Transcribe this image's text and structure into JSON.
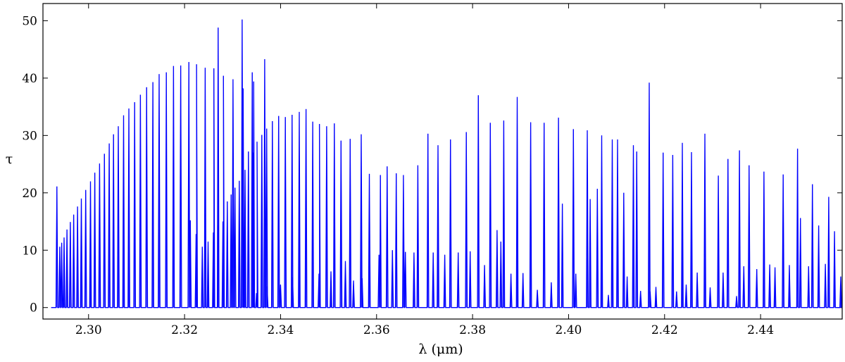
{
  "chart_data": {
    "type": "line",
    "xlabel": "λ (μm)",
    "ylabel": "τ",
    "xlim": [
      2.2905,
      2.457
    ],
    "ylim": [
      -2,
      53
    ],
    "xticks": [
      2.3,
      2.32,
      2.34,
      2.36,
      2.38,
      2.4,
      2.42,
      2.44
    ],
    "xtick_labels": [
      "2.30",
      "2.32",
      "2.34",
      "2.36",
      "2.38",
      "2.40",
      "2.42",
      "2.44"
    ],
    "yticks": [
      0,
      10,
      20,
      30,
      40,
      50
    ],
    "ytick_labels": [
      "0",
      "10",
      "20",
      "30",
      "40",
      "50"
    ],
    "grid": false,
    "line_color": "#0000ff",
    "baseline": 0,
    "series": [
      {
        "peaks": [
          [
            2.2934,
            21.1
          ],
          [
            2.294,
            10.6
          ],
          [
            2.2944,
            11.3
          ],
          [
            2.2949,
            12.2
          ],
          [
            2.2955,
            13.6
          ],
          [
            2.2962,
            14.9
          ],
          [
            2.2969,
            16.2
          ],
          [
            2.2977,
            17.6
          ],
          [
            2.2985,
            19.0
          ],
          [
            2.2994,
            20.5
          ],
          [
            2.3004,
            22.0
          ],
          [
            2.3013,
            23.5
          ],
          [
            2.3023,
            25.1
          ],
          [
            2.3033,
            26.8
          ],
          [
            2.3043,
            28.6
          ],
          [
            2.3052,
            30.2
          ],
          [
            2.3062,
            31.6
          ],
          [
            2.3073,
            33.5
          ],
          [
            2.3084,
            34.7
          ],
          [
            2.3096,
            35.8
          ],
          [
            2.3108,
            37.1
          ],
          [
            2.3121,
            38.4
          ],
          [
            2.3134,
            39.3
          ],
          [
            2.3147,
            40.7
          ],
          [
            2.3162,
            41.0
          ],
          [
            2.3177,
            42.1
          ],
          [
            2.3192,
            42.2
          ],
          [
            2.3209,
            42.8
          ],
          [
            2.3225,
            42.4
          ],
          [
            2.3243,
            41.8
          ],
          [
            2.3261,
            41.7
          ],
          [
            2.3281,
            40.4
          ],
          [
            2.3301,
            39.8
          ],
          [
            2.3322,
            38.2
          ],
          [
            2.3344,
            39.4
          ],
          [
            2.3367,
            43.3
          ],
          [
            2.327,
            48.8
          ],
          [
            2.332,
            50.2
          ],
          [
            2.3341,
            41.0
          ],
          [
            2.3212,
            15.2
          ],
          [
            2.3224,
            12.8
          ],
          [
            2.3237,
            10.6
          ],
          [
            2.3249,
            11.5
          ],
          [
            2.326,
            13.1
          ],
          [
            2.327,
            14.3
          ],
          [
            2.328,
            15.0
          ],
          [
            2.3289,
            18.5
          ],
          [
            2.3297,
            19.7
          ],
          [
            2.3305,
            20.9
          ],
          [
            2.3314,
            22.1
          ],
          [
            2.3326,
            24.0
          ],
          [
            2.3333,
            27.2
          ],
          [
            2.3342,
            27.0
          ],
          [
            2.3351,
            28.9
          ],
          [
            2.3361,
            30.1
          ],
          [
            2.3371,
            31.2
          ],
          [
            2.3383,
            32.5
          ],
          [
            2.3396,
            33.4
          ],
          [
            2.341,
            33.2
          ],
          [
            2.3424,
            33.6
          ],
          [
            2.3439,
            34.1
          ],
          [
            2.3453,
            34.6
          ],
          [
            2.3467,
            32.4
          ],
          [
            2.3481,
            32.0
          ],
          [
            2.3496,
            31.6
          ],
          [
            2.3512,
            32.1
          ],
          [
            2.3526,
            29.1
          ],
          [
            2.3545,
            29.4
          ],
          [
            2.3568,
            30.2
          ],
          [
            2.3585,
            23.3
          ],
          [
            2.3608,
            23.1
          ],
          [
            2.3622,
            24.6
          ],
          [
            2.3641,
            23.4
          ],
          [
            2.3656,
            23.1
          ],
          [
            2.3686,
            24.8
          ],
          [
            2.3707,
            30.3
          ],
          [
            2.3728,
            28.3
          ],
          [
            2.3754,
            29.3
          ],
          [
            2.3787,
            30.6
          ],
          [
            2.3812,
            37.0
          ],
          [
            2.3837,
            32.2
          ],
          [
            2.3865,
            32.6
          ],
          [
            2.3893,
            36.7
          ],
          [
            2.3921,
            32.3
          ],
          [
            2.3949,
            32.2
          ],
          [
            2.3979,
            33.1
          ],
          [
            2.401,
            31.1
          ],
          [
            2.4039,
            30.9
          ],
          [
            2.4069,
            30.0
          ],
          [
            2.4091,
            29.3
          ],
          [
            2.4102,
            29.3
          ],
          [
            2.4135,
            28.3
          ],
          [
            2.4142,
            27.2
          ],
          [
            2.4168,
            39.2
          ],
          [
            2.4197,
            27.0
          ],
          [
            2.4217,
            26.6
          ],
          [
            2.4237,
            28.7
          ],
          [
            2.4256,
            27.1
          ],
          [
            2.4284,
            30.3
          ],
          [
            2.4312,
            23.0
          ],
          [
            2.4332,
            25.9
          ],
          [
            2.4356,
            27.4
          ],
          [
            2.4376,
            24.8
          ],
          [
            2.4407,
            23.7
          ],
          [
            2.4447,
            23.2
          ],
          [
            2.4477,
            27.7
          ],
          [
            2.4483,
            15.6
          ],
          [
            2.4508,
            21.5
          ],
          [
            2.4521,
            14.3
          ],
          [
            2.4542,
            19.3
          ],
          [
            2.4554,
            13.3
          ],
          [
            2.4567,
            5.4
          ]
        ],
        "small_features": [
          [
            2.335,
            2.5
          ],
          [
            2.3372,
            3.7
          ],
          [
            2.34,
            4.0
          ],
          [
            2.3425,
            5.3
          ],
          [
            2.348,
            5.9
          ],
          [
            2.3505,
            6.3
          ],
          [
            2.3535,
            8.1
          ],
          [
            2.3552,
            4.7
          ],
          [
            2.357,
            5.1
          ],
          [
            2.3605,
            9.2
          ],
          [
            2.3633,
            10.0
          ],
          [
            2.366,
            9.7
          ],
          [
            2.3678,
            9.6
          ],
          [
            2.3718,
            9.6
          ],
          [
            2.3742,
            9.2
          ],
          [
            2.377,
            9.6
          ],
          [
            2.3795,
            9.8
          ],
          [
            2.3825,
            7.4
          ],
          [
            2.3851,
            13.5
          ],
          [
            2.3859,
            11.5
          ],
          [
            2.388,
            5.9
          ],
          [
            2.3905,
            6.0
          ],
          [
            2.3935,
            3.1
          ],
          [
            2.3964,
            4.4
          ],
          [
            2.3987,
            18.1
          ],
          [
            2.4015,
            5.9
          ],
          [
            2.4045,
            18.9
          ],
          [
            2.406,
            20.7
          ],
          [
            2.4083,
            2.2
          ],
          [
            2.4115,
            20.0
          ],
          [
            2.4122,
            5.4
          ],
          [
            2.415,
            2.9
          ],
          [
            2.417,
            2.8
          ],
          [
            2.4182,
            3.6
          ],
          [
            2.4225,
            2.8
          ],
          [
            2.4245,
            4.0
          ],
          [
            2.4268,
            6.1
          ],
          [
            2.4295,
            3.5
          ],
          [
            2.4322,
            6.1
          ],
          [
            2.435,
            2.0
          ],
          [
            2.4365,
            7.2
          ],
          [
            2.4392,
            6.7
          ],
          [
            2.4419,
            7.5
          ],
          [
            2.443,
            7.0
          ],
          [
            2.446,
            7.4
          ],
          [
            2.45,
            7.2
          ],
          [
            2.4535,
            7.6
          ]
        ]
      }
    ]
  }
}
